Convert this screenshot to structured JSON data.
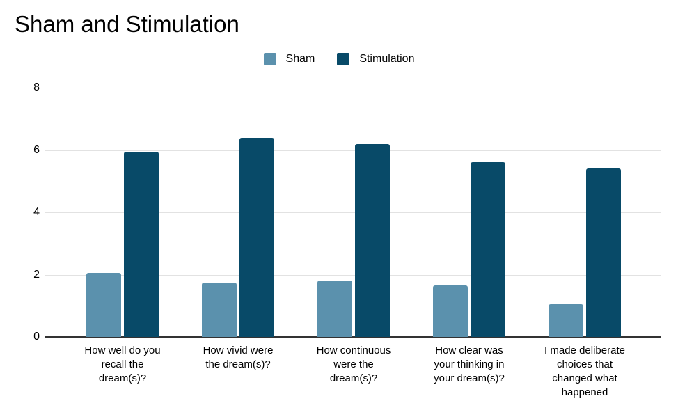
{
  "title": "Sham and Stimulation",
  "legend": {
    "items": [
      {
        "label": "Sham",
        "color": "#5b91ad"
      },
      {
        "label": "Stimulation",
        "color": "#084a68"
      }
    ]
  },
  "chart_data": {
    "type": "bar",
    "title": "Sham and Stimulation",
    "categories": [
      "How well do you recall the dream(s)?",
      "How vivid were the dream(s)?",
      "How continuous were the dream(s)?",
      "How clear was your thinking in your dream(s)?",
      "I made deliberate choices that changed what happened"
    ],
    "category_lines": [
      [
        "How well do you",
        "recall the",
        "dream(s)?"
      ],
      [
        "How vivid were",
        "the dream(s)?"
      ],
      [
        "How continuous",
        "were the",
        "dream(s)?"
      ],
      [
        "How clear was",
        "your thinking in",
        "your dream(s)?"
      ],
      [
        "I made deliberate",
        "choices that",
        "changed what",
        "happened"
      ]
    ],
    "series": [
      {
        "name": "Sham",
        "color": "#5b91ad",
        "values": [
          2.05,
          1.75,
          1.8,
          1.65,
          1.05
        ]
      },
      {
        "name": "Stimulation",
        "color": "#084a68",
        "values": [
          5.95,
          6.4,
          6.2,
          5.6,
          5.4
        ]
      }
    ],
    "xlabel": "",
    "ylabel": "",
    "y_axis": {
      "min": 0,
      "max": 8,
      "ticks": [
        0,
        2,
        4,
        6,
        8
      ]
    },
    "grid": true,
    "legend_position": "top"
  },
  "colors": {
    "background": "#ffffff",
    "gridline": "#e2e2e2",
    "axis_line": "#333333",
    "text": "#000000"
  }
}
